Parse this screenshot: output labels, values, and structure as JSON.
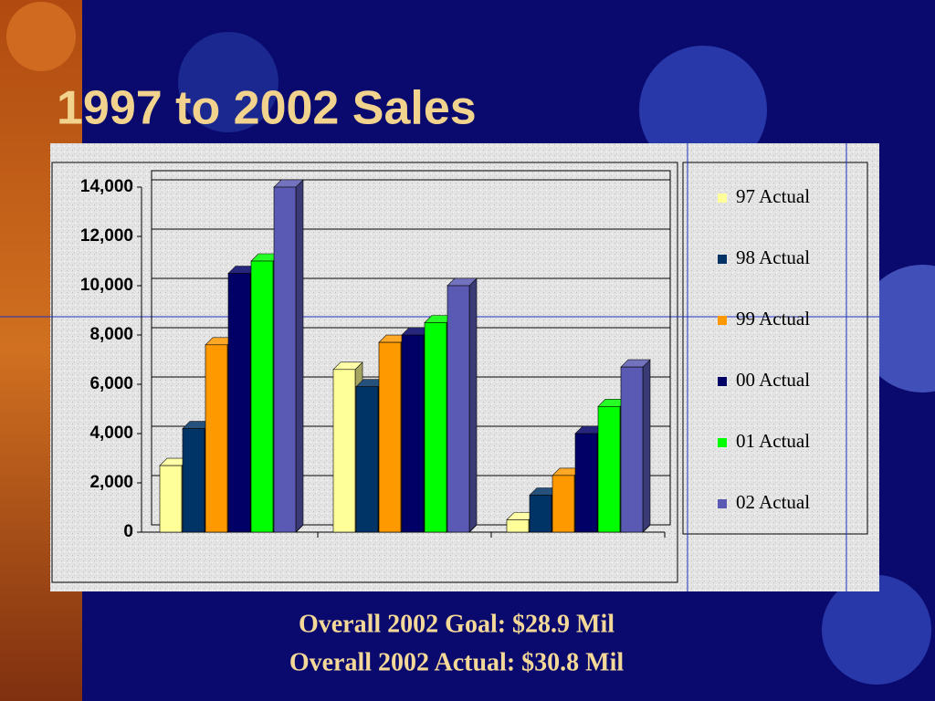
{
  "chart_data": {
    "type": "bar3d",
    "title": "1997 to 2002 Sales",
    "annotations": [
      "Overall 2002 Goal:  $28.9 Mil",
      "Overall 2002 Actual: $30.8 Mil"
    ],
    "categories": [
      null,
      null,
      null
    ],
    "series": [
      {
        "name": "97 Actual",
        "color": "#ffff99",
        "values": [
          2700,
          6600,
          500
        ]
      },
      {
        "name": "98 Actual",
        "color": "#003366",
        "values": [
          4200,
          5900,
          1500
        ]
      },
      {
        "name": "99 Actual",
        "color": "#ff9900",
        "values": [
          7600,
          7700,
          2300
        ]
      },
      {
        "name": "00 Actual",
        "color": "#000066",
        "values": [
          10500,
          8000,
          4000
        ]
      },
      {
        "name": "01 Actual",
        "color": "#00ff00",
        "values": [
          11000,
          8500,
          5100
        ]
      },
      {
        "name": "02 Actual",
        "color": "#5a5ab4",
        "values": [
          14000,
          10000,
          6700
        ]
      }
    ],
    "ylim": [
      0,
      14000
    ],
    "yticks": [
      0,
      {
        "value": 2000,
        "label": "2,000"
      },
      {
        "value": 4000,
        "label": "4,000"
      },
      {
        "value": 6000,
        "label": "6,000"
      },
      {
        "value": 8000,
        "label": "8,000"
      },
      {
        "value": 10000,
        "label": "10,000"
      },
      {
        "value": 12000,
        "label": "12,000"
      },
      {
        "value": 14000,
        "label": "14,000"
      }
    ],
    "grid": true,
    "legend": "right"
  }
}
